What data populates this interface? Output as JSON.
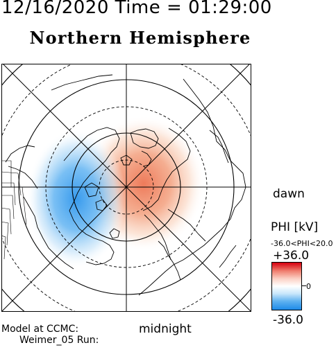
{
  "header": {
    "datetime": "12/16/2020 Time = 01:29:00",
    "hemisphere_title": "Northern Hemisphere"
  },
  "labels": {
    "dawn": "dawn",
    "midnight": "midnight"
  },
  "colorbar": {
    "title": "PHI [kV]",
    "range_text": "-36.0<PHI<20.0",
    "max_label": "+36.0",
    "zero_label": "0",
    "min_label": "-36.0",
    "colors": {
      "max": "#d7000f",
      "mid": "#ffffff",
      "min": "#1e8ae8"
    }
  },
  "footer": {
    "line1": "Model at CCMC:",
    "line2": "Weimer_05 Run:"
  },
  "potential_pattern": {
    "positive_cell_color": "#f08a6a",
    "negative_cell_color": "#3aa0ee",
    "pole_latitude": 90,
    "latitude_circles_solid": [
      80,
      70,
      60,
      50
    ],
    "latitude_circles_dashed": [
      85,
      75,
      65,
      55,
      45
    ]
  }
}
